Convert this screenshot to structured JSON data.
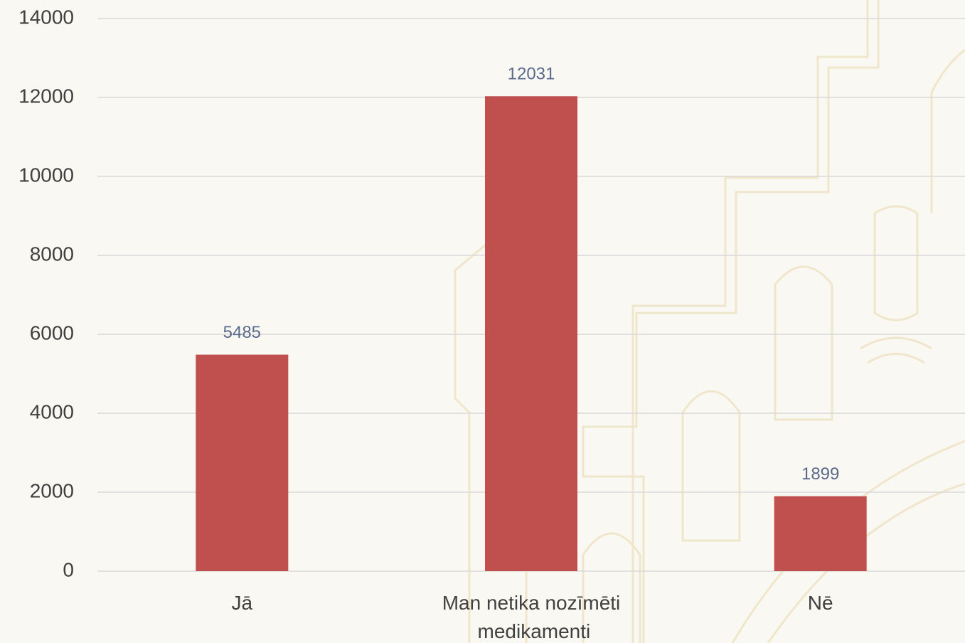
{
  "chart_data": {
    "type": "bar",
    "categories": [
      "Jā",
      "Man netika nozīmēti medikamenti",
      "Nē"
    ],
    "values": [
      5485,
      12031,
      1899
    ],
    "color": "#c0504d",
    "ylim": [
      0,
      14000
    ],
    "yticks": [
      0,
      2000,
      4000,
      6000,
      8000,
      10000,
      12000,
      14000
    ],
    "grid": true
  }
}
